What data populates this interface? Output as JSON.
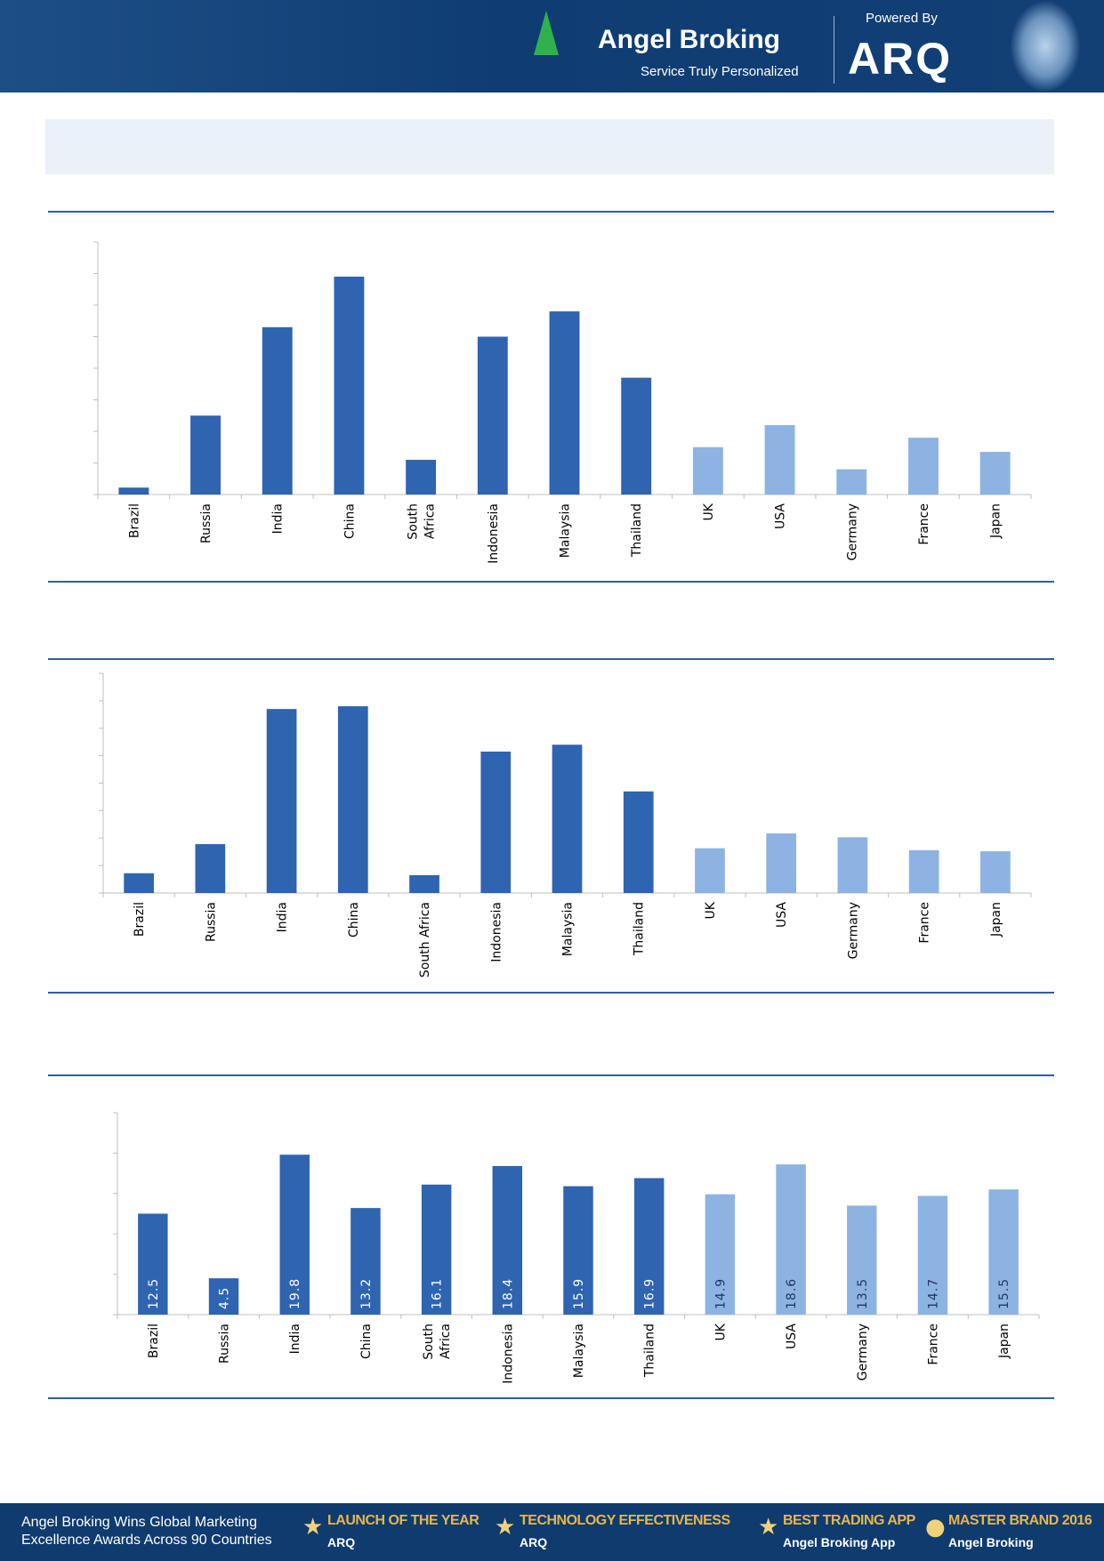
{
  "header": {
    "brand": "Angel Broking",
    "tagline": "Service Truly Personalized",
    "powered_by": "Powered By",
    "product": "ARQ"
  },
  "footer": {
    "message_line1": "Angel Broking Wins Global Marketing",
    "message_line2": "Excellence Awards Across 90 Countries",
    "awards": [
      {
        "title": "LAUNCH OF THE YEAR",
        "sub": "ARQ"
      },
      {
        "title": "TECHNOLOGY EFFECTIVENESS",
        "sub": "ARQ"
      },
      {
        "title": "BEST TRADING APP",
        "sub": "Angel Broking App"
      },
      {
        "title": "MASTER BRAND 2016",
        "sub": "Angel Broking"
      }
    ]
  },
  "colors": {
    "emerging": "#2e64b0",
    "developed": "#8db3e2",
    "rule": "#2f5da8"
  },
  "chart_data": [
    {
      "type": "bar",
      "ylim": [
        0,
        8
      ],
      "grid": false,
      "y_tick_labels_shown": false,
      "categories": [
        "Brazil",
        "Russia",
        "India",
        "China",
        "South Africa",
        "Indonesia",
        "Malaysia",
        "Thailand",
        "UK",
        "USA",
        "Germany",
        "France",
        "Japan"
      ],
      "category_labels": [
        [
          "Brazil"
        ],
        [
          "Russia"
        ],
        [
          "India"
        ],
        [
          "China"
        ],
        [
          "South",
          "Africa"
        ],
        [
          "Indonesia"
        ],
        [
          "Malaysia"
        ],
        [
          "Thailand"
        ],
        [
          "UK"
        ],
        [
          "USA"
        ],
        [
          "Germany"
        ],
        [
          "France"
        ],
        [
          "Japan"
        ]
      ],
      "values": [
        0.22,
        2.5,
        5.3,
        6.9,
        1.1,
        5.0,
        5.8,
        3.7,
        1.5,
        2.2,
        0.8,
        1.8,
        1.35
      ],
      "bar_group": [
        "emerging",
        "emerging",
        "emerging",
        "emerging",
        "emerging",
        "emerging",
        "emerging",
        "emerging",
        "developed",
        "developed",
        "developed",
        "developed",
        "developed"
      ]
    },
    {
      "type": "bar",
      "ylim": [
        0,
        8
      ],
      "grid": false,
      "y_tick_labels_shown": false,
      "categories": [
        "Brazil",
        "Russia",
        "India",
        "China",
        "South Africa",
        "Indonesia",
        "Malaysia",
        "Thailand",
        "UK",
        "USA",
        "Germany",
        "France",
        "Japan"
      ],
      "category_labels": [
        [
          "Brazil"
        ],
        [
          "Russia"
        ],
        [
          "India"
        ],
        [
          "China"
        ],
        [
          "South Africa"
        ],
        [
          "Indonesia"
        ],
        [
          "Malaysia"
        ],
        [
          "Thailand"
        ],
        [
          "UK"
        ],
        [
          "USA"
        ],
        [
          "Germany"
        ],
        [
          "France"
        ],
        [
          "Japan"
        ]
      ],
      "values": [
        0.72,
        1.78,
        6.7,
        6.8,
        0.65,
        5.15,
        5.4,
        3.7,
        1.63,
        2.17,
        2.03,
        1.56,
        1.52
      ],
      "bar_group": [
        "emerging",
        "emerging",
        "emerging",
        "emerging",
        "emerging",
        "emerging",
        "emerging",
        "emerging",
        "developed",
        "developed",
        "developed",
        "developed",
        "developed"
      ]
    },
    {
      "type": "bar",
      "ylim": [
        0,
        25
      ],
      "grid": false,
      "y_tick_labels_shown": false,
      "categories": [
        "Brazil",
        "Russia",
        "India",
        "China",
        "South Africa",
        "Indonesia",
        "Malaysia",
        "Thailand",
        "UK",
        "USA",
        "Germany",
        "France",
        "Japan"
      ],
      "category_labels": [
        [
          "Brazil"
        ],
        [
          "Russia"
        ],
        [
          "India"
        ],
        [
          "China"
        ],
        [
          "South",
          "Africa"
        ],
        [
          "Indonesia"
        ],
        [
          "Malaysia"
        ],
        [
          "Thailand"
        ],
        [
          "UK"
        ],
        [
          "USA"
        ],
        [
          "Germany"
        ],
        [
          "France"
        ],
        [
          "Japan"
        ]
      ],
      "values": [
        12.5,
        4.5,
        19.8,
        13.2,
        16.1,
        18.4,
        15.9,
        16.9,
        14.9,
        18.6,
        13.5,
        14.7,
        15.5
      ],
      "data_labels": [
        "12.5",
        "4.5",
        "19.8",
        "13.2",
        "16.1",
        "18.4",
        "15.9",
        "16.9",
        "14.9",
        "18.6",
        "13.5",
        "14.7",
        "15.5"
      ],
      "bar_group": [
        "emerging",
        "emerging",
        "emerging",
        "emerging",
        "emerging",
        "emerging",
        "emerging",
        "emerging",
        "developed",
        "developed",
        "developed",
        "developed",
        "developed"
      ]
    }
  ]
}
